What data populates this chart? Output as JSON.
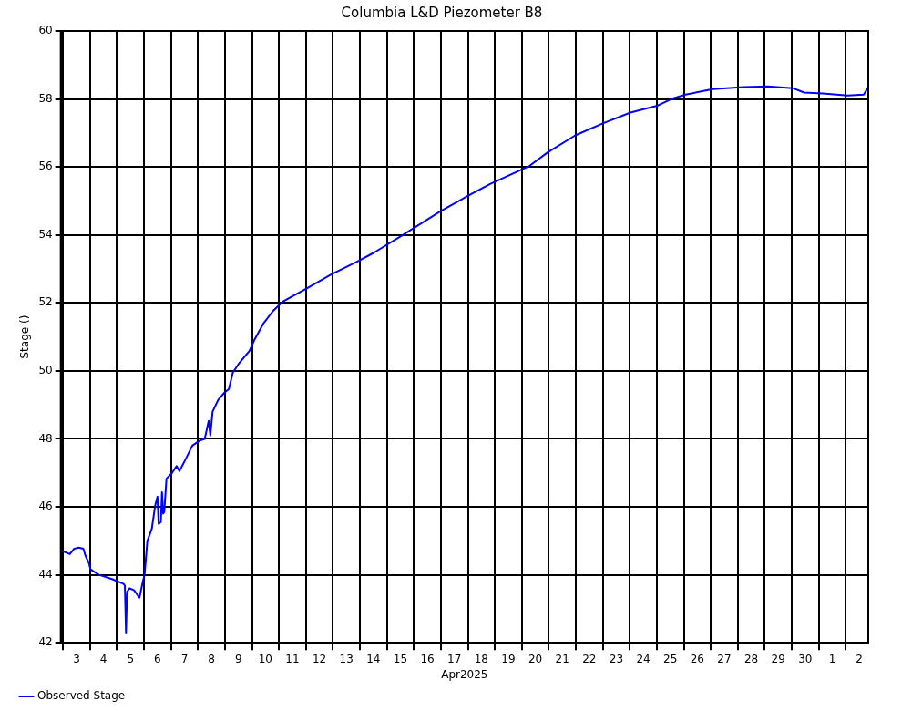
{
  "chart_data": {
    "type": "line",
    "title": "Columbia L&D Piezometer B8",
    "xlabel": "Apr2025",
    "ylabel": "Stage ()",
    "xlim": [
      "2025-04-02T22:00",
      "2025-05-02T20:00"
    ],
    "xticks": [
      {
        "value": "2025-04-03",
        "label": null
      },
      {
        "value": "2025-04-04",
        "label": null
      },
      {
        "value": "2025-04-05",
        "label": null
      },
      {
        "value": "2025-04-06",
        "label": null
      },
      {
        "value": "2025-04-07",
        "label": null
      },
      {
        "value": "2025-04-08",
        "label": null
      },
      {
        "value": "2025-04-09",
        "label": null
      },
      {
        "value": "2025-04-10",
        "label": null
      },
      {
        "value": "2025-04-11",
        "label": null
      },
      {
        "value": "2025-04-12",
        "label": null
      },
      {
        "value": "2025-04-13",
        "label": null
      },
      {
        "value": "2025-04-14",
        "label": null
      },
      {
        "value": "2025-04-15",
        "label": null
      },
      {
        "value": "2025-04-16",
        "label": null
      },
      {
        "value": "2025-04-17",
        "label": null
      },
      {
        "value": "2025-04-18",
        "label": null
      },
      {
        "value": "2025-04-19",
        "label": null
      },
      {
        "value": "2025-04-20",
        "label": null
      },
      {
        "value": "2025-04-21",
        "label": null
      },
      {
        "value": "2025-04-22",
        "label": null
      },
      {
        "value": "2025-04-23",
        "label": null
      },
      {
        "value": "2025-04-24",
        "label": null
      },
      {
        "value": "2025-04-25",
        "label": null
      },
      {
        "value": "2025-04-26",
        "label": null
      },
      {
        "value": "2025-04-27",
        "label": null
      },
      {
        "value": "2025-04-28",
        "label": null
      },
      {
        "value": "2025-04-29",
        "label": null
      },
      {
        "value": "2025-04-30",
        "label": null
      },
      {
        "value": "2025-05-01",
        "label": null
      },
      {
        "value": "2025-05-02",
        "label": null
      },
      {
        "value": "2025-04-03T12:00",
        "label": "3"
      },
      {
        "value": "2025-04-04T12:00",
        "label": "4"
      },
      {
        "value": "2025-04-05T12:00",
        "label": "5"
      },
      {
        "value": "2025-04-06T12:00",
        "label": "6"
      },
      {
        "value": "2025-04-07T12:00",
        "label": "7"
      },
      {
        "value": "2025-04-08T12:00",
        "label": "8"
      },
      {
        "value": "2025-04-09T12:00",
        "label": "9"
      },
      {
        "value": "2025-04-10T12:00",
        "label": "10"
      },
      {
        "value": "2025-04-11T12:00",
        "label": "11"
      },
      {
        "value": "2025-04-12T12:00",
        "label": "12"
      },
      {
        "value": "2025-04-13T12:00",
        "label": "13"
      },
      {
        "value": "2025-04-14T12:00",
        "label": "14"
      },
      {
        "value": "2025-04-15T12:00",
        "label": "15"
      },
      {
        "value": "2025-04-16T12:00",
        "label": "16"
      },
      {
        "value": "2025-04-17T12:00",
        "label": "17"
      },
      {
        "value": "2025-04-18T12:00",
        "label": "18"
      },
      {
        "value": "2025-04-19T12:00",
        "label": "19"
      },
      {
        "value": "2025-04-20T12:00",
        "label": "20"
      },
      {
        "value": "2025-04-21T12:00",
        "label": "21"
      },
      {
        "value": "2025-04-22T12:00",
        "label": "22"
      },
      {
        "value": "2025-04-23T12:00",
        "label": "23"
      },
      {
        "value": "2025-04-24T12:00",
        "label": "24"
      },
      {
        "value": "2025-04-25T12:00",
        "label": "25"
      },
      {
        "value": "2025-04-26T12:00",
        "label": "26"
      },
      {
        "value": "2025-04-27T12:00",
        "label": "27"
      },
      {
        "value": "2025-04-28T12:00",
        "label": "28"
      },
      {
        "value": "2025-04-29T12:00",
        "label": "29"
      },
      {
        "value": "2025-04-30T12:00",
        "label": "30"
      },
      {
        "value": "2025-05-01T12:00",
        "label": "1"
      },
      {
        "value": "2025-05-02T12:00",
        "label": "2"
      }
    ],
    "ylim": [
      42,
      60
    ],
    "yticks": [
      42,
      44,
      46,
      48,
      50,
      52,
      54,
      56,
      58,
      60
    ],
    "grid": true,
    "legend": "bottom left",
    "marker": "none",
    "line_style": "solid",
    "x": [
      "2025-04-02T22:00",
      "2025-04-03T06:00",
      "2025-04-03T10:00",
      "2025-04-03T14:00",
      "2025-04-03T18:00",
      "2025-04-03T20:00",
      "2025-04-03T23:00",
      "2025-04-04T00:30",
      "2025-04-04T08:00",
      "2025-04-04T20:00",
      "2025-04-05T06:00",
      "2025-04-05T07:00",
      "2025-04-05T08:00",
      "2025-04-05T09:00",
      "2025-04-05T11:00",
      "2025-04-05T15:00",
      "2025-04-05T20:00",
      "2025-04-05T23:00",
      "2025-04-06T00:30",
      "2025-04-06T03:00",
      "2025-04-06T07:00",
      "2025-04-06T10:00",
      "2025-04-06T12:00",
      "2025-04-06T13:00",
      "2025-04-06T15:00",
      "2025-04-06T16:00",
      "2025-04-06T17:00",
      "2025-04-06T18:00",
      "2025-04-06T20:00",
      "2025-04-07T01:00",
      "2025-04-07T05:00",
      "2025-04-07T07:30",
      "2025-04-07T13:00",
      "2025-04-07T19:00",
      "2025-04-08T01:30",
      "2025-04-08T06:00",
      "2025-04-08T09:30",
      "2025-04-08T11:00",
      "2025-04-08T13:00",
      "2025-04-08T18:00",
      "2025-04-08T23:30",
      "2025-04-09T03:30",
      "2025-04-09T07:00",
      "2025-04-09T12:00",
      "2025-04-09T22:00",
      "2025-04-10T02:00",
      "2025-04-10T10:30",
      "2025-04-10T18:40",
      "2025-04-11T03:00",
      "2025-04-12T00:45",
      "2025-04-12T22:00",
      "2025-04-13T22:30",
      "2025-04-14T12:00",
      "2025-04-15T12:45",
      "2025-04-16T23:45",
      "2025-04-18T00:00",
      "2025-04-18T19:45",
      "2025-04-20T06:45",
      "2025-04-20T23:00",
      "2025-04-21T23:30",
      "2025-04-23T00:00",
      "2025-04-24T00:30",
      "2025-04-25T01:00",
      "2025-04-25T13:00",
      "2025-04-26T01:30",
      "2025-04-27T01:45",
      "2025-04-28T05:00",
      "2025-04-29T02:40",
      "2025-04-30T00:45",
      "2025-04-30T11:00",
      "2025-05-01T03:30",
      "2025-05-02T01:40",
      "2025-05-02T16:00",
      "2025-05-02T20:00"
    ],
    "series": [
      {
        "name": "Observed Stage",
        "color": "#0000ff",
        "values": [
          44.72,
          44.61,
          44.77,
          44.8,
          44.77,
          44.56,
          44.35,
          44.16,
          44.0,
          43.87,
          43.73,
          43.68,
          42.3,
          43.5,
          43.6,
          43.55,
          43.33,
          43.8,
          44.0,
          45.0,
          45.36,
          46.05,
          46.3,
          45.5,
          45.55,
          46.43,
          45.8,
          45.85,
          46.83,
          47.0,
          47.2,
          47.05,
          47.4,
          47.8,
          47.95,
          48.0,
          48.53,
          48.1,
          48.8,
          49.15,
          49.36,
          49.47,
          49.95,
          50.2,
          50.6,
          50.9,
          51.41,
          51.76,
          52.03,
          52.43,
          52.83,
          53.23,
          53.47,
          53.97,
          54.7,
          55.15,
          55.5,
          56.03,
          56.43,
          56.93,
          57.28,
          57.6,
          57.81,
          58.0,
          58.13,
          58.29,
          58.35,
          58.37,
          58.32,
          58.19,
          58.16,
          58.1,
          58.13,
          58.35
        ]
      }
    ]
  }
}
